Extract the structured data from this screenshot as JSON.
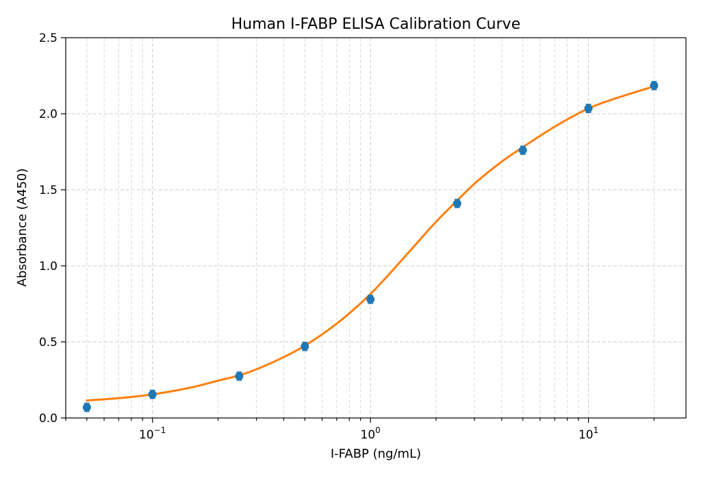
{
  "chart_data": {
    "type": "scatter",
    "title": "Human I-FABP ELISA Calibration Curve",
    "xlabel": "I-FABP (ng/mL)",
    "ylabel": "Absorbance (A450)",
    "x_scale": "log",
    "xlim": [
      0.04,
      28
    ],
    "ylim": [
      0,
      2.5
    ],
    "grid": true,
    "x_ticks": [
      {
        "value": 0.1,
        "base": "10",
        "exp": "−1"
      },
      {
        "value": 1,
        "base": "10",
        "exp": "0"
      },
      {
        "value": 10,
        "base": "10",
        "exp": "1"
      }
    ],
    "y_ticks": [
      {
        "value": 0.0,
        "label": "0.0"
      },
      {
        "value": 0.5,
        "label": "0.5"
      },
      {
        "value": 1.0,
        "label": "1.0"
      },
      {
        "value": 1.5,
        "label": "1.5"
      },
      {
        "value": 2.0,
        "label": "2.0"
      },
      {
        "value": 2.5,
        "label": "2.5"
      }
    ],
    "series": [
      {
        "kind": "points",
        "color": "#1f77b4",
        "x": [
          0.05,
          0.1,
          0.25,
          0.5,
          1,
          2.5,
          5,
          10,
          20
        ],
        "y": [
          0.07,
          0.155,
          0.275,
          0.47,
          0.78,
          1.41,
          1.76,
          2.035,
          2.185
        ]
      },
      {
        "kind": "fit-curve",
        "color": "#ff7f0e",
        "x": [
          0.05,
          0.07,
          0.1,
          0.15,
          0.2,
          0.25,
          0.3,
          0.4,
          0.5,
          0.7,
          1,
          1.5,
          2,
          2.5,
          3,
          4,
          5,
          7,
          10,
          15,
          20
        ],
        "y": [
          0.115,
          0.13,
          0.155,
          0.2,
          0.245,
          0.28,
          0.32,
          0.4,
          0.475,
          0.62,
          0.815,
          1.09,
          1.29,
          1.43,
          1.54,
          1.685,
          1.78,
          1.915,
          2.035,
          2.125,
          2.18
        ]
      }
    ]
  }
}
